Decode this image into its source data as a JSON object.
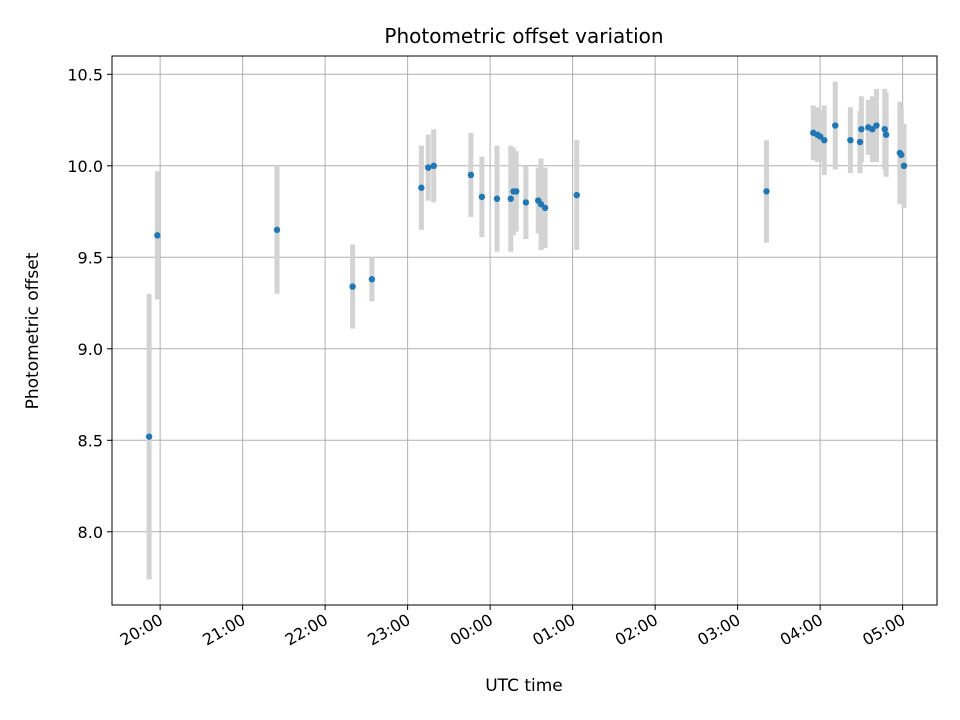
{
  "chart_data": {
    "type": "scatter",
    "title": "Photometric offset variation",
    "xlabel": "UTC time",
    "ylabel": "Photometric offset",
    "x_ticks": [
      "20:00",
      "21:00",
      "22:00",
      "23:00",
      "00:00",
      "01:00",
      "02:00",
      "03:00",
      "04:00",
      "05:00"
    ],
    "y_ticks": [
      "8.0",
      "8.5",
      "9.0",
      "9.5",
      "10.0",
      "10.5"
    ],
    "xlim": [
      "19:25",
      "05:25"
    ],
    "ylim": [
      7.6,
      10.6
    ],
    "grid": true,
    "colors": {
      "point": "#1f77b4",
      "errorbar": "#d3d3d3",
      "grid": "#b0b0b0"
    },
    "points": [
      {
        "x": "19:52",
        "y": 8.52,
        "err": 0.78
      },
      {
        "x": "19:58",
        "y": 9.62,
        "err": 0.35
      },
      {
        "x": "21:25",
        "y": 9.65,
        "err": 0.35
      },
      {
        "x": "22:20",
        "y": 9.34,
        "err": 0.23
      },
      {
        "x": "22:34",
        "y": 9.38,
        "err": 0.12
      },
      {
        "x": "23:10",
        "y": 9.88,
        "err": 0.23
      },
      {
        "x": "23:15",
        "y": 9.99,
        "err": 0.18
      },
      {
        "x": "23:19",
        "y": 10.0,
        "err": 0.2
      },
      {
        "x": "23:46",
        "y": 9.95,
        "err": 0.23
      },
      {
        "x": "23:54",
        "y": 9.83,
        "err": 0.22
      },
      {
        "x": "00:05",
        "y": 9.82,
        "err": 0.29
      },
      {
        "x": "00:15",
        "y": 9.82,
        "err": 0.29
      },
      {
        "x": "00:17",
        "y": 9.86,
        "err": 0.24
      },
      {
        "x": "00:19",
        "y": 9.86,
        "err": 0.22
      },
      {
        "x": "00:26",
        "y": 9.8,
        "err": 0.2
      },
      {
        "x": "00:35",
        "y": 9.81,
        "err": 0.18
      },
      {
        "x": "00:37",
        "y": 9.79,
        "err": 0.25
      },
      {
        "x": "00:40",
        "y": 9.77,
        "err": 0.22
      },
      {
        "x": "01:03",
        "y": 9.84,
        "err": 0.3
      },
      {
        "x": "03:21",
        "y": 9.86,
        "err": 0.28
      },
      {
        "x": "03:55",
        "y": 10.18,
        "err": 0.15
      },
      {
        "x": "03:58",
        "y": 10.17,
        "err": 0.15
      },
      {
        "x": "04:00",
        "y": 10.16,
        "err": 0.14
      },
      {
        "x": "04:03",
        "y": 10.14,
        "err": 0.19
      },
      {
        "x": "04:11",
        "y": 10.22,
        "err": 0.24
      },
      {
        "x": "04:22",
        "y": 10.14,
        "err": 0.18
      },
      {
        "x": "04:29",
        "y": 10.13,
        "err": 0.17
      },
      {
        "x": "04:30",
        "y": 10.2,
        "err": 0.18
      },
      {
        "x": "04:35",
        "y": 10.21,
        "err": 0.15
      },
      {
        "x": "04:38",
        "y": 10.2,
        "err": 0.18
      },
      {
        "x": "04:41",
        "y": 10.22,
        "err": 0.2
      },
      {
        "x": "04:47",
        "y": 10.2,
        "err": 0.22
      },
      {
        "x": "04:48",
        "y": 10.17,
        "err": 0.23
      },
      {
        "x": "04:58",
        "y": 10.07,
        "err": 0.28
      },
      {
        "x": "04:59",
        "y": 10.06,
        "err": 0.25
      },
      {
        "x": "05:01",
        "y": 10.0,
        "err": 0.23
      }
    ]
  }
}
